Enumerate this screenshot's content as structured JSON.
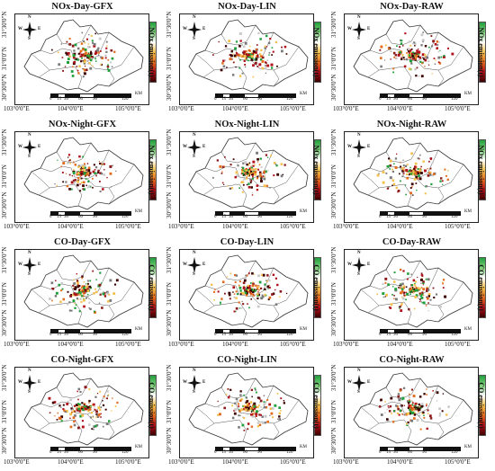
{
  "colorbar_label": {
    "nox": "NOx emission(t)",
    "co": "CO emission(t)"
  },
  "colorbar_colors": [
    "#1f9e3b",
    "#7fd07a",
    "#ffffff",
    "#f2c14e",
    "#e26b1c",
    "#b0101a",
    "#3a0000"
  ],
  "panels": [
    {
      "title": "NOx-Day-GFX",
      "pollutant": "nox",
      "lat_ticks": [
        "31°30'0\"N",
        "31°0'0\"N",
        "30°30'0\"N"
      ],
      "lon_ticks": [
        "103°0'0\"E",
        "104°0'0\"E",
        "105°0'0\"E"
      ]
    },
    {
      "title": "NOx-Day-LIN",
      "pollutant": "nox",
      "lat_ticks": [
        "31°30'0\"N",
        "31°0'0\"N",
        "30°30'0\"N"
      ],
      "lon_ticks": [
        "103°0'0\"E",
        "104°0'0\"E",
        "105°0'0\"E"
      ]
    },
    {
      "title": "NOx-Day-RAW",
      "pollutant": "nox",
      "lat_ticks": [
        "31°30'0\"N",
        "31°0'0\"N",
        "30°30'0\"N"
      ],
      "lon_ticks": [
        "103°0'0\"E",
        "104°0'0\"E",
        "105°0'0\"E"
      ]
    },
    {
      "title": "NOx-Night-GFX",
      "pollutant": "nox",
      "lat_ticks": [
        "31°30'0\"N",
        "31°0'0\"N",
        "30°30'0\"N"
      ],
      "lon_ticks": [
        "103°0'0\"E",
        "104°0'0\"E",
        "105°0'0\"E"
      ]
    },
    {
      "title": "NOx-Night-LIN",
      "pollutant": "nox",
      "lat_ticks": [
        "31°30'0\"N",
        "31°0'0\"N",
        "30°30'0\"N"
      ],
      "lon_ticks": [
        "103°0'0\"E",
        "104°0'0\"E",
        "105°0'0\"E"
      ]
    },
    {
      "title": "NOx-Night-RAW",
      "pollutant": "nox",
      "lat_ticks": [
        "31°30'0\"N",
        "31°0'0\"N",
        "30°30'0\"N"
      ],
      "lon_ticks": [
        "103°0'0\"E",
        "104°0'0\"E",
        "105°0'0\"E"
      ]
    },
    {
      "title": "CO-Day-GFX",
      "pollutant": "co",
      "lat_ticks": [
        "31°30'0\"N",
        "31°0'0\"N",
        "30°30'0\"N"
      ],
      "lon_ticks": [
        "103°0'0\"E",
        "104°0'0\"E",
        "105°0'0\"E"
      ]
    },
    {
      "title": "CO-Day-LIN",
      "pollutant": "co",
      "lat_ticks": [
        "31°30'0\"N",
        "31°0'0\"N",
        "30°30'0\"N"
      ],
      "lon_ticks": [
        "103°0'0\"E",
        "104°0'0\"E",
        "105°0'0\"E"
      ]
    },
    {
      "title": "CO-Day-RAW",
      "pollutant": "co",
      "lat_ticks": [
        "31°30'0\"N",
        "31°0'0\"N",
        "30°30'0\"N"
      ],
      "lon_ticks": [
        "103°0'0\"E",
        "104°0'0\"E",
        "105°0'0\"E"
      ]
    },
    {
      "title": "CO-Night-GFX",
      "pollutant": "co",
      "lat_ticks": [
        "31°30'0\"N",
        "31°0'0\"N",
        "30°30'0\"N"
      ],
      "lon_ticks": [
        "103°0'0\"E",
        "104°0'0\"E",
        "105°0'0\"E"
      ]
    },
    {
      "title": "CO-Night-LIN",
      "pollutant": "co",
      "lat_ticks": [
        "31°30'0\"N",
        "31°0'0\"N",
        "30°30'0\"N"
      ],
      "lon_ticks": [
        "103°0'0\"E",
        "104°0'0\"E",
        "105°0'0\"E"
      ]
    },
    {
      "title": "CO-Night-RAW",
      "pollutant": "co",
      "lat_ticks": [
        "31°30'0\"N",
        "31°0'0\"N",
        "30°30'0\"N"
      ],
      "lon_ticks": [
        "103°0'0\"E",
        "104°0'0\"E",
        "105°0'0\"E"
      ]
    }
  ],
  "scale_bar": {
    "labels": [
      "0",
      "15",
      "30",
      "60",
      "90",
      "120"
    ],
    "unit": "KM"
  },
  "compass": {
    "n": "N",
    "s": "S",
    "e": "E",
    "w": "W"
  }
}
